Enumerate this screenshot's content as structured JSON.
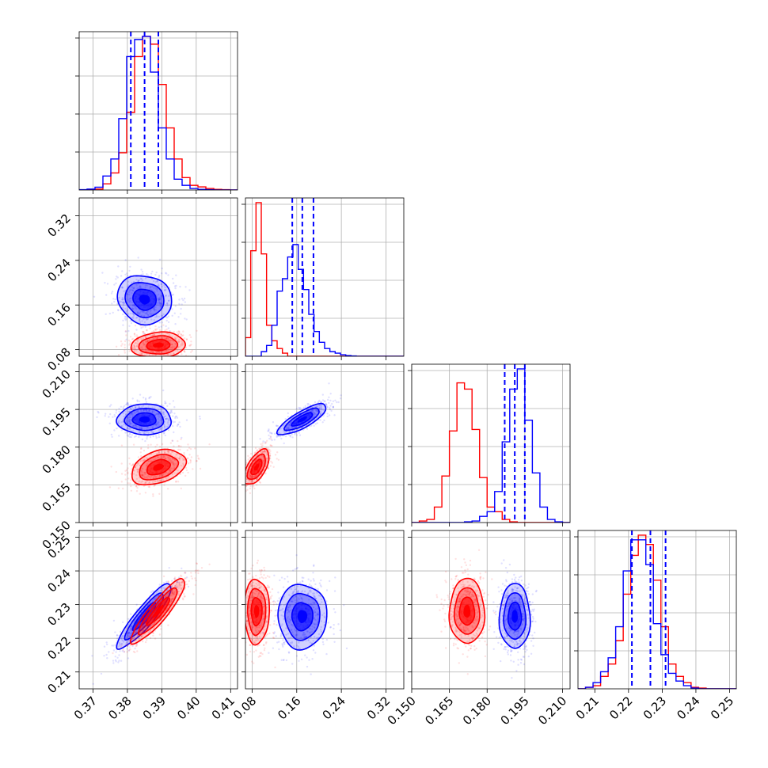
{
  "chart_data": {
    "type": "corner",
    "colors": {
      "series_a": "#0000ff",
      "series_b": "#ff0000"
    },
    "parameters": [
      {
        "index": 0,
        "range": [
          0.366,
          0.412
        ],
        "ticks": [
          "0.37",
          "0.38",
          "0.39",
          "0.40",
          "0.41"
        ],
        "tick_values": [
          0.37,
          0.38,
          0.39,
          0.4,
          0.41
        ]
      },
      {
        "index": 1,
        "range": [
          0.068,
          0.352
        ],
        "ticks": [
          "0.08",
          "0.16",
          "0.24",
          "0.32"
        ],
        "tick_values": [
          0.08,
          0.16,
          0.24,
          0.32
        ]
      },
      {
        "index": 2,
        "range": [
          0.15,
          0.213
        ],
        "ticks": [
          "0.150",
          "0.165",
          "0.180",
          "0.195",
          "0.210"
        ],
        "tick_values": [
          0.15,
          0.165,
          0.18,
          0.195,
          0.21
        ]
      },
      {
        "index": 3,
        "range": [
          0.205,
          0.252
        ],
        "ticks": [
          "0.21",
          "0.22",
          "0.23",
          "0.24",
          "0.25"
        ],
        "tick_values": [
          0.21,
          0.22,
          0.23,
          0.24,
          0.25
        ]
      }
    ],
    "series": [
      {
        "color": "#0000ff",
        "mean": [
          0.385,
          0.17,
          0.191,
          0.2265
        ],
        "sigma": [
          0.0045,
          0.025,
          0.0035,
          0.0055
        ],
        "quantiles": [
          [
            0.381,
            0.385,
            0.389
          ],
          [
            0.152,
            0.17,
            0.19
          ],
          [
            0.187,
            0.191,
            0.195
          ],
          [
            0.221,
            0.2265,
            0.231
          ]
        ],
        "correlations": {
          "0-1": -0.1,
          "0-2": 0.0,
          "0-3": 0.9,
          "1-2": 0.8,
          "1-3": 0.0,
          "2-3": 0.0
        }
      },
      {
        "color": "#ff0000",
        "mean": [
          0.389,
          0.088,
          0.172,
          0.228
        ],
        "sigma": [
          0.0045,
          0.013,
          0.004,
          0.0055
        ],
        "correlations": {
          "0-1": 0.1,
          "0-2": 0.35,
          "0-3": 0.9,
          "1-2": 0.6,
          "1-3": 0.0,
          "2-3": 0.0
        }
      }
    ],
    "histograms": [
      {
        "param": 0,
        "bins": [
          0.366,
          0.412,
          20
        ],
        "series_a": [
          0.002,
          0.006,
          0.018,
          0.09,
          0.2,
          0.46,
          0.86,
          0.97,
          0.99,
          0.76,
          0.4,
          0.2,
          0.07,
          0.03,
          0.01,
          0.004,
          0.002,
          0,
          0,
          0
        ],
        "series_b": [
          0,
          0.002,
          0.006,
          0.04,
          0.11,
          0.24,
          0.5,
          0.86,
          0.99,
          0.94,
          0.68,
          0.4,
          0.2,
          0.08,
          0.03,
          0.02,
          0.01,
          0.004,
          0.002,
          0
        ]
      },
      {
        "param": 1,
        "bins": [
          0.068,
          0.352,
          30
        ],
        "series_a": [
          0,
          0,
          0,
          0.03,
          0.07,
          0.2,
          0.42,
          0.5,
          0.64,
          0.72,
          0.56,
          0.43,
          0.27,
          0.16,
          0.09,
          0.05,
          0.03,
          0.02,
          0.01,
          0.005,
          0.002,
          0,
          0,
          0,
          0,
          0,
          0,
          0,
          0,
          0
        ],
        "series_b": [
          0.12,
          0.68,
          0.99,
          0.66,
          0.2,
          0.1,
          0.05,
          0.02,
          0,
          0,
          0,
          0,
          0,
          0,
          0,
          0,
          0,
          0,
          0,
          0,
          0,
          0,
          0,
          0,
          0,
          0,
          0,
          0,
          0,
          0
        ]
      },
      {
        "param": 2,
        "bins": [
          0.15,
          0.213,
          21
        ],
        "series_a": [
          0,
          0,
          0,
          0,
          0,
          0,
          0,
          0.005,
          0.01,
          0.04,
          0.07,
          0.2,
          0.52,
          0.86,
          0.99,
          0.66,
          0.32,
          0.1,
          0.02,
          0.005,
          0
        ],
        "series_b": [
          0,
          0.01,
          0.02,
          0.1,
          0.3,
          0.59,
          0.9,
          0.86,
          0.6,
          0.29,
          0.1,
          0.07,
          0.02,
          0.005,
          0,
          0,
          0,
          0,
          0,
          0,
          0
        ]
      },
      {
        "param": 3,
        "bins": [
          0.205,
          0.252,
          21
        ],
        "series_a": [
          0,
          0.01,
          0.04,
          0.11,
          0.2,
          0.4,
          0.76,
          0.96,
          0.96,
          0.8,
          0.42,
          0.22,
          0.1,
          0.05,
          0.02,
          0.005,
          0,
          0,
          0,
          0,
          0
        ],
        "series_b": [
          0,
          0.01,
          0.02,
          0.08,
          0.16,
          0.31,
          0.61,
          0.86,
          0.99,
          0.93,
          0.7,
          0.4,
          0.16,
          0.08,
          0.04,
          0.01,
          0.005,
          0,
          0,
          0,
          0
        ]
      }
    ],
    "contour_levels": [
      0.75,
      1.25,
      1.75
    ],
    "grid": true
  }
}
